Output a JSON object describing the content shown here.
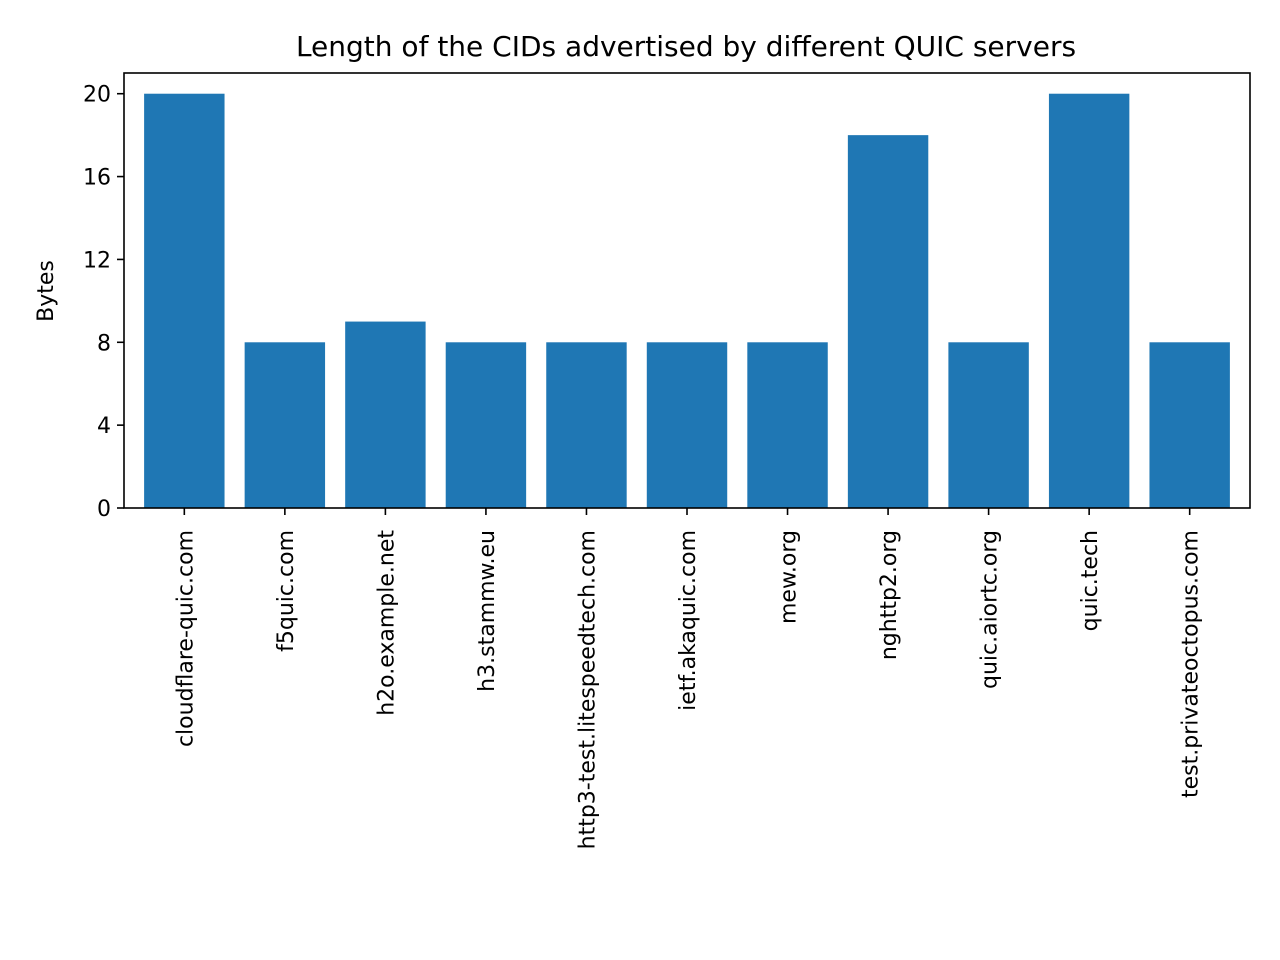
{
  "chart_data": {
    "type": "bar",
    "title": "Length of the CIDs advertised by different QUIC servers",
    "xlabel": "",
    "ylabel": "Bytes",
    "categories": [
      "cloudflare-quic.com",
      "f5quic.com",
      "h2o.example.net",
      "h3.stammw.eu",
      "http3-test.litespeedtech.com",
      "ietf.akaquic.com",
      "mew.org",
      "nghttp2.org",
      "quic.aiortc.org",
      "quic.tech",
      "test.privateoctopus.com"
    ],
    "values": [
      20,
      8,
      9,
      8,
      8,
      8,
      8,
      18,
      8,
      20,
      8
    ],
    "ylim": [
      0,
      21
    ],
    "yticks": [
      0,
      4,
      8,
      12,
      16,
      20
    ],
    "grid": false,
    "color": "#1f77b4"
  }
}
